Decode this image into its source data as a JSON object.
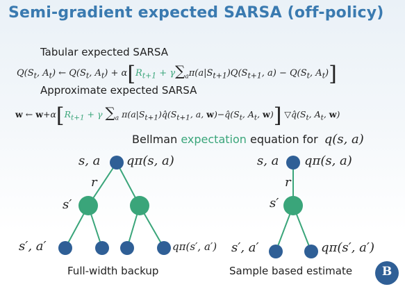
{
  "slide": {
    "title": "Semi-gradient  expected SARSA (off-policy)",
    "tabular_heading": "Tabular expected SARSA",
    "approx_heading": "Approximate expected SARSA",
    "bellman_prefix": "Bellman",
    "bellman_highlight": "expectation",
    "bellman_suffix": "equation for",
    "bellman_q": "q(s, a)",
    "tree_left": {
      "root_label": "s, a",
      "root_q": "qπ(s, a)",
      "r_label": "r",
      "mid_label": "s′",
      "leaf_left_label": "s′, a′",
      "leaf_right_label": "qπ(s′, a′)",
      "caption": "Full-width backup"
    },
    "tree_right": {
      "root_label": "s, a",
      "root_q": "qπ(s, a)",
      "r_label": "r",
      "mid_label": "s′",
      "leaf_left_label": "s′, a′",
      "leaf_right_label": "qπ(s′, a′)",
      "caption": "Sample based estimate"
    },
    "logo_text": "В",
    "colors": {
      "title": "#3a7ab0",
      "green_node": "#3aa57a",
      "blue_node": "#2f5f96",
      "edge": "#3aa57a"
    }
  }
}
